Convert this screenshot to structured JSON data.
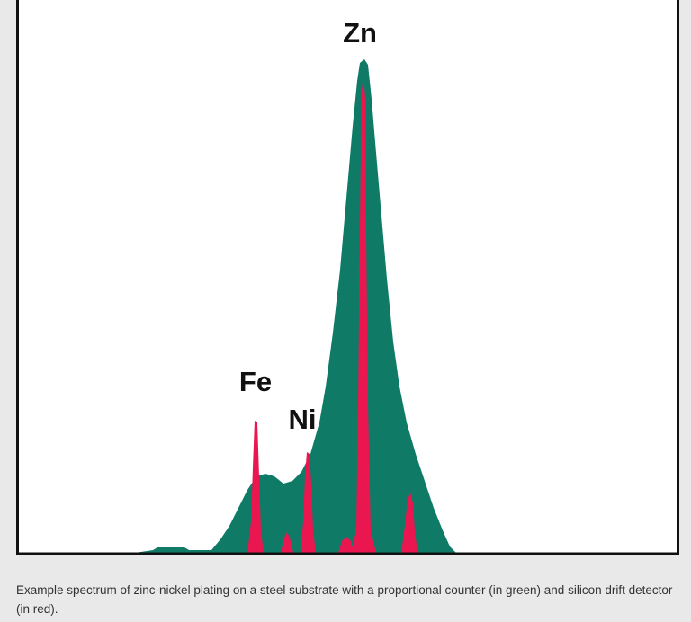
{
  "figure": {
    "labels": {
      "fe": "Fe",
      "ni": "Ni",
      "zn": "Zn"
    }
  },
  "caption": "Example spectrum of zinc-nickel plating on a steel substrate with a proportional counter (in green) and silicon drift detector (in red)."
}
